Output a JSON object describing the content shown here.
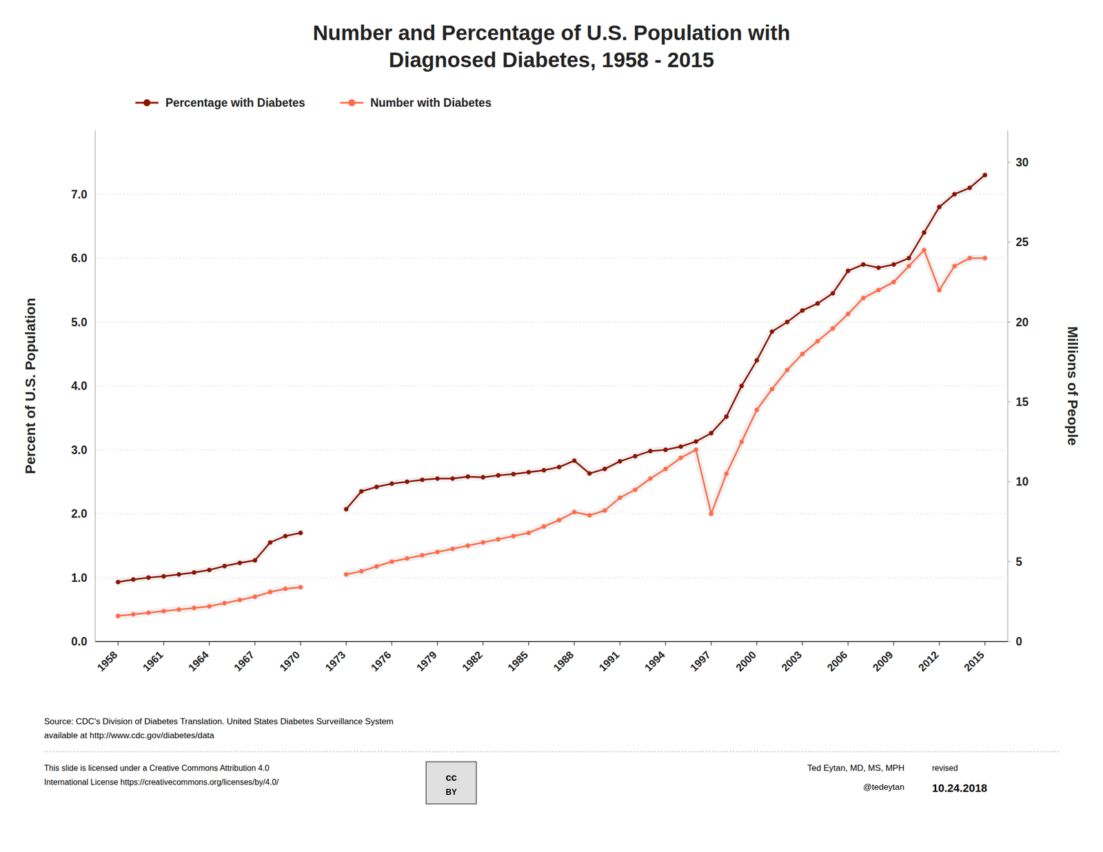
{
  "chart_data": {
    "type": "line",
    "title": "Number and Percentage of U.S. Population with\nDiagnosed Diabetes, 1958 - 2015",
    "ylabel": "Percent of U.S. Population",
    "y2label": "Millions of People",
    "x": [
      1958,
      1959,
      1960,
      1961,
      1962,
      1963,
      1964,
      1965,
      1966,
      1967,
      1968,
      1969,
      1970,
      1971,
      1972,
      1973,
      1974,
      1975,
      1976,
      1977,
      1978,
      1979,
      1980,
      1981,
      1982,
      1983,
      1984,
      1985,
      1986,
      1987,
      1988,
      1989,
      1990,
      1991,
      1992,
      1993,
      1994,
      1995,
      1996,
      1997,
      1998,
      1999,
      2000,
      2001,
      2002,
      2003,
      2004,
      2005,
      2006,
      2007,
      2008,
      2009,
      2010,
      2011,
      2012,
      2013,
      2014,
      2015
    ],
    "series": [
      {
        "name": "Percentage with Diabetes",
        "color": "#8B1500",
        "values": [
          0.93,
          0.97,
          1.0,
          1.02,
          1.05,
          1.08,
          1.12,
          1.18,
          1.23,
          1.27,
          1.55,
          1.65,
          1.7,
          null,
          null,
          2.07,
          2.35,
          2.42,
          2.47,
          2.5,
          2.53,
          2.55,
          2.55,
          2.58,
          2.57,
          2.6,
          2.62,
          2.65,
          2.68,
          2.73,
          2.83,
          2.63,
          2.7,
          2.82,
          2.9,
          2.98,
          3.0,
          3.05,
          3.13,
          3.26,
          3.52,
          4.0,
          4.4,
          4.85,
          5.0,
          5.18,
          5.29,
          5.45,
          5.8,
          5.9,
          5.85,
          5.9,
          6.0,
          6.4,
          6.8,
          7.0,
          7.1,
          7.3
        ]
      },
      {
        "name": "Number with Diabetes",
        "color": "#FF6B4A",
        "axis": "y2",
        "values": [
          1.6,
          1.7,
          1.8,
          1.9,
          2.0,
          2.1,
          2.2,
          2.4,
          2.6,
          2.8,
          3.1,
          3.3,
          3.4,
          null,
          null,
          4.2,
          4.4,
          4.7,
          5.0,
          5.2,
          5.4,
          5.6,
          5.8,
          6.0,
          6.2,
          6.4,
          6.6,
          6.8,
          7.2,
          7.6,
          8.1,
          7.9,
          8.2,
          9.0,
          9.5,
          10.2,
          10.8,
          11.5,
          12.0,
          8.0,
          10.5,
          12.5,
          14.5,
          15.8,
          17.0,
          18.0,
          18.8,
          19.6,
          20.5,
          21.5,
          22.0,
          22.5,
          23.5,
          24.5,
          22.0,
          23.5,
          24.0,
          24.0
        ]
      }
    ],
    "xlim": [
      1956.5,
      2016.5
    ],
    "xticks": [
      1958,
      1961,
      1964,
      1967,
      1970,
      1973,
      1976,
      1979,
      1982,
      1985,
      1988,
      1991,
      1994,
      1997,
      2000,
      2003,
      2006,
      2009,
      2012,
      2015
    ],
    "ylim": [
      0.0,
      8.0
    ],
    "yticks": [
      {
        "value": 0,
        "label": "0.0"
      },
      {
        "value": 1,
        "label": "1.0"
      },
      {
        "value": 2,
        "label": "2.0"
      },
      {
        "value": 3,
        "label": "3.0"
      },
      {
        "value": 4,
        "label": "4.0"
      },
      {
        "value": 5,
        "label": "5.0"
      },
      {
        "value": 6,
        "label": "6.0"
      },
      {
        "value": 7,
        "label": "7.0"
      }
    ],
    "y2lim": [
      0,
      32
    ],
    "y2ticks": [
      0,
      5,
      10,
      15,
      20,
      25,
      30
    ],
    "grid": true,
    "legend": "top-left",
    "marker": "circle",
    "annotations": [
      "Source: CDC's Division of Diabetes Translation. United States Diabetes Surveillance System",
      "available at http://www.cdc.gov/diabetes/data",
      "This slide is licensed under a  Creative Commons Attribution 4.0",
      "International License https://creativecommons.org/licenses/by/4.0/",
      "cc",
      "BY",
      "Ted Eytan, MD, MS, MPH",
      "@tedeytan",
      "revised",
      "10.24.2018"
    ]
  }
}
